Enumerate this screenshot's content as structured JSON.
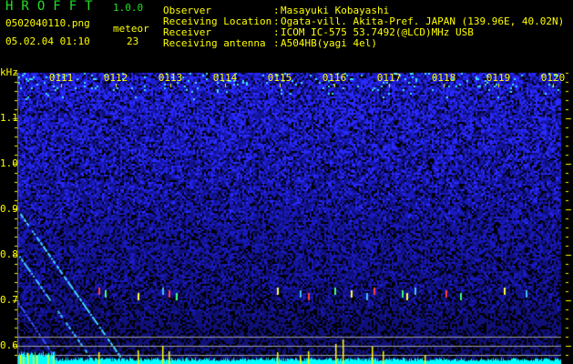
{
  "header": {
    "app_title": "HROFFT",
    "version": "1.0.0",
    "filename": "0502040110.png",
    "datetime": "05.02.04 01:10",
    "meteor_label": "meteor",
    "meteor_count": "23"
  },
  "info": [
    {
      "label": "Observer",
      "value": "Masayuki Kobayashi"
    },
    {
      "label": "Receiving Location",
      "value": "Ogata-vill. Akita-Pref. JAPAN (139.96E, 40.02N)"
    },
    {
      "label": "Receiver",
      "value": "ICOM IC-575 53.7492(@LCD)MHz USB"
    },
    {
      "label": "Receiving antenna",
      "value": "A504HB(yagi 4el)"
    }
  ],
  "spectrogram": {
    "y_unit": "kHz",
    "y_ticks": [
      "1.1",
      "1.0",
      "0.9",
      "0.8",
      "0.7",
      "0.6"
    ],
    "time_labels": [
      "0111",
      "0112",
      "0113",
      "0114",
      "0115",
      "0116",
      "0117",
      "0118",
      "0119",
      "0120"
    ],
    "colors": {
      "text": "#ffff00",
      "title": "#22e022",
      "noise": "#1a1aff",
      "histogram": "#00ffff",
      "spike": "#ffff00",
      "guide_lines": "#a0a0a0"
    }
  }
}
